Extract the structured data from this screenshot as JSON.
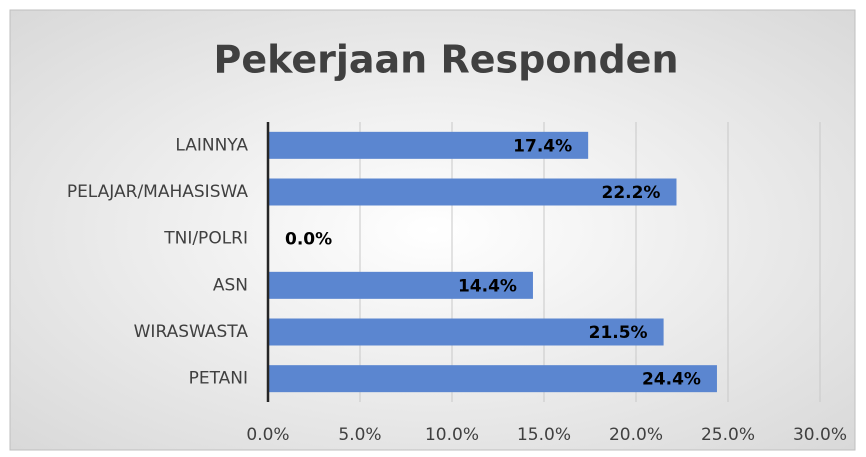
{
  "chart_data": {
    "type": "bar",
    "orientation": "horizontal",
    "title": "Pekerjaan Responden",
    "categories": [
      "LAINNYA",
      "PELAJAR/MAHASISWA",
      "TNI/POLRI",
      "ASN",
      "WIRASWASTA",
      "PETANI"
    ],
    "values": [
      17.4,
      22.2,
      0,
      14.4,
      21.5,
      24.4
    ],
    "value_labels": [
      "17.4%",
      "22.2%",
      "0.0%",
      "14.4%",
      "21.5%",
      "24.4%"
    ],
    "color": "#5b86d0",
    "xlim": [
      0,
      30
    ],
    "xticks": [
      {
        "value": 0,
        "label": "0.0%"
      },
      {
        "value": 5,
        "label": "5.0%"
      },
      {
        "value": 10,
        "label": "10.0%"
      },
      {
        "value": 15,
        "label": "15.0%"
      },
      {
        "value": 20,
        "label": "20.0%"
      },
      {
        "value": 25,
        "label": "25.0%"
      },
      {
        "value": 30,
        "label": "30.0%"
      }
    ],
    "grid": true
  }
}
